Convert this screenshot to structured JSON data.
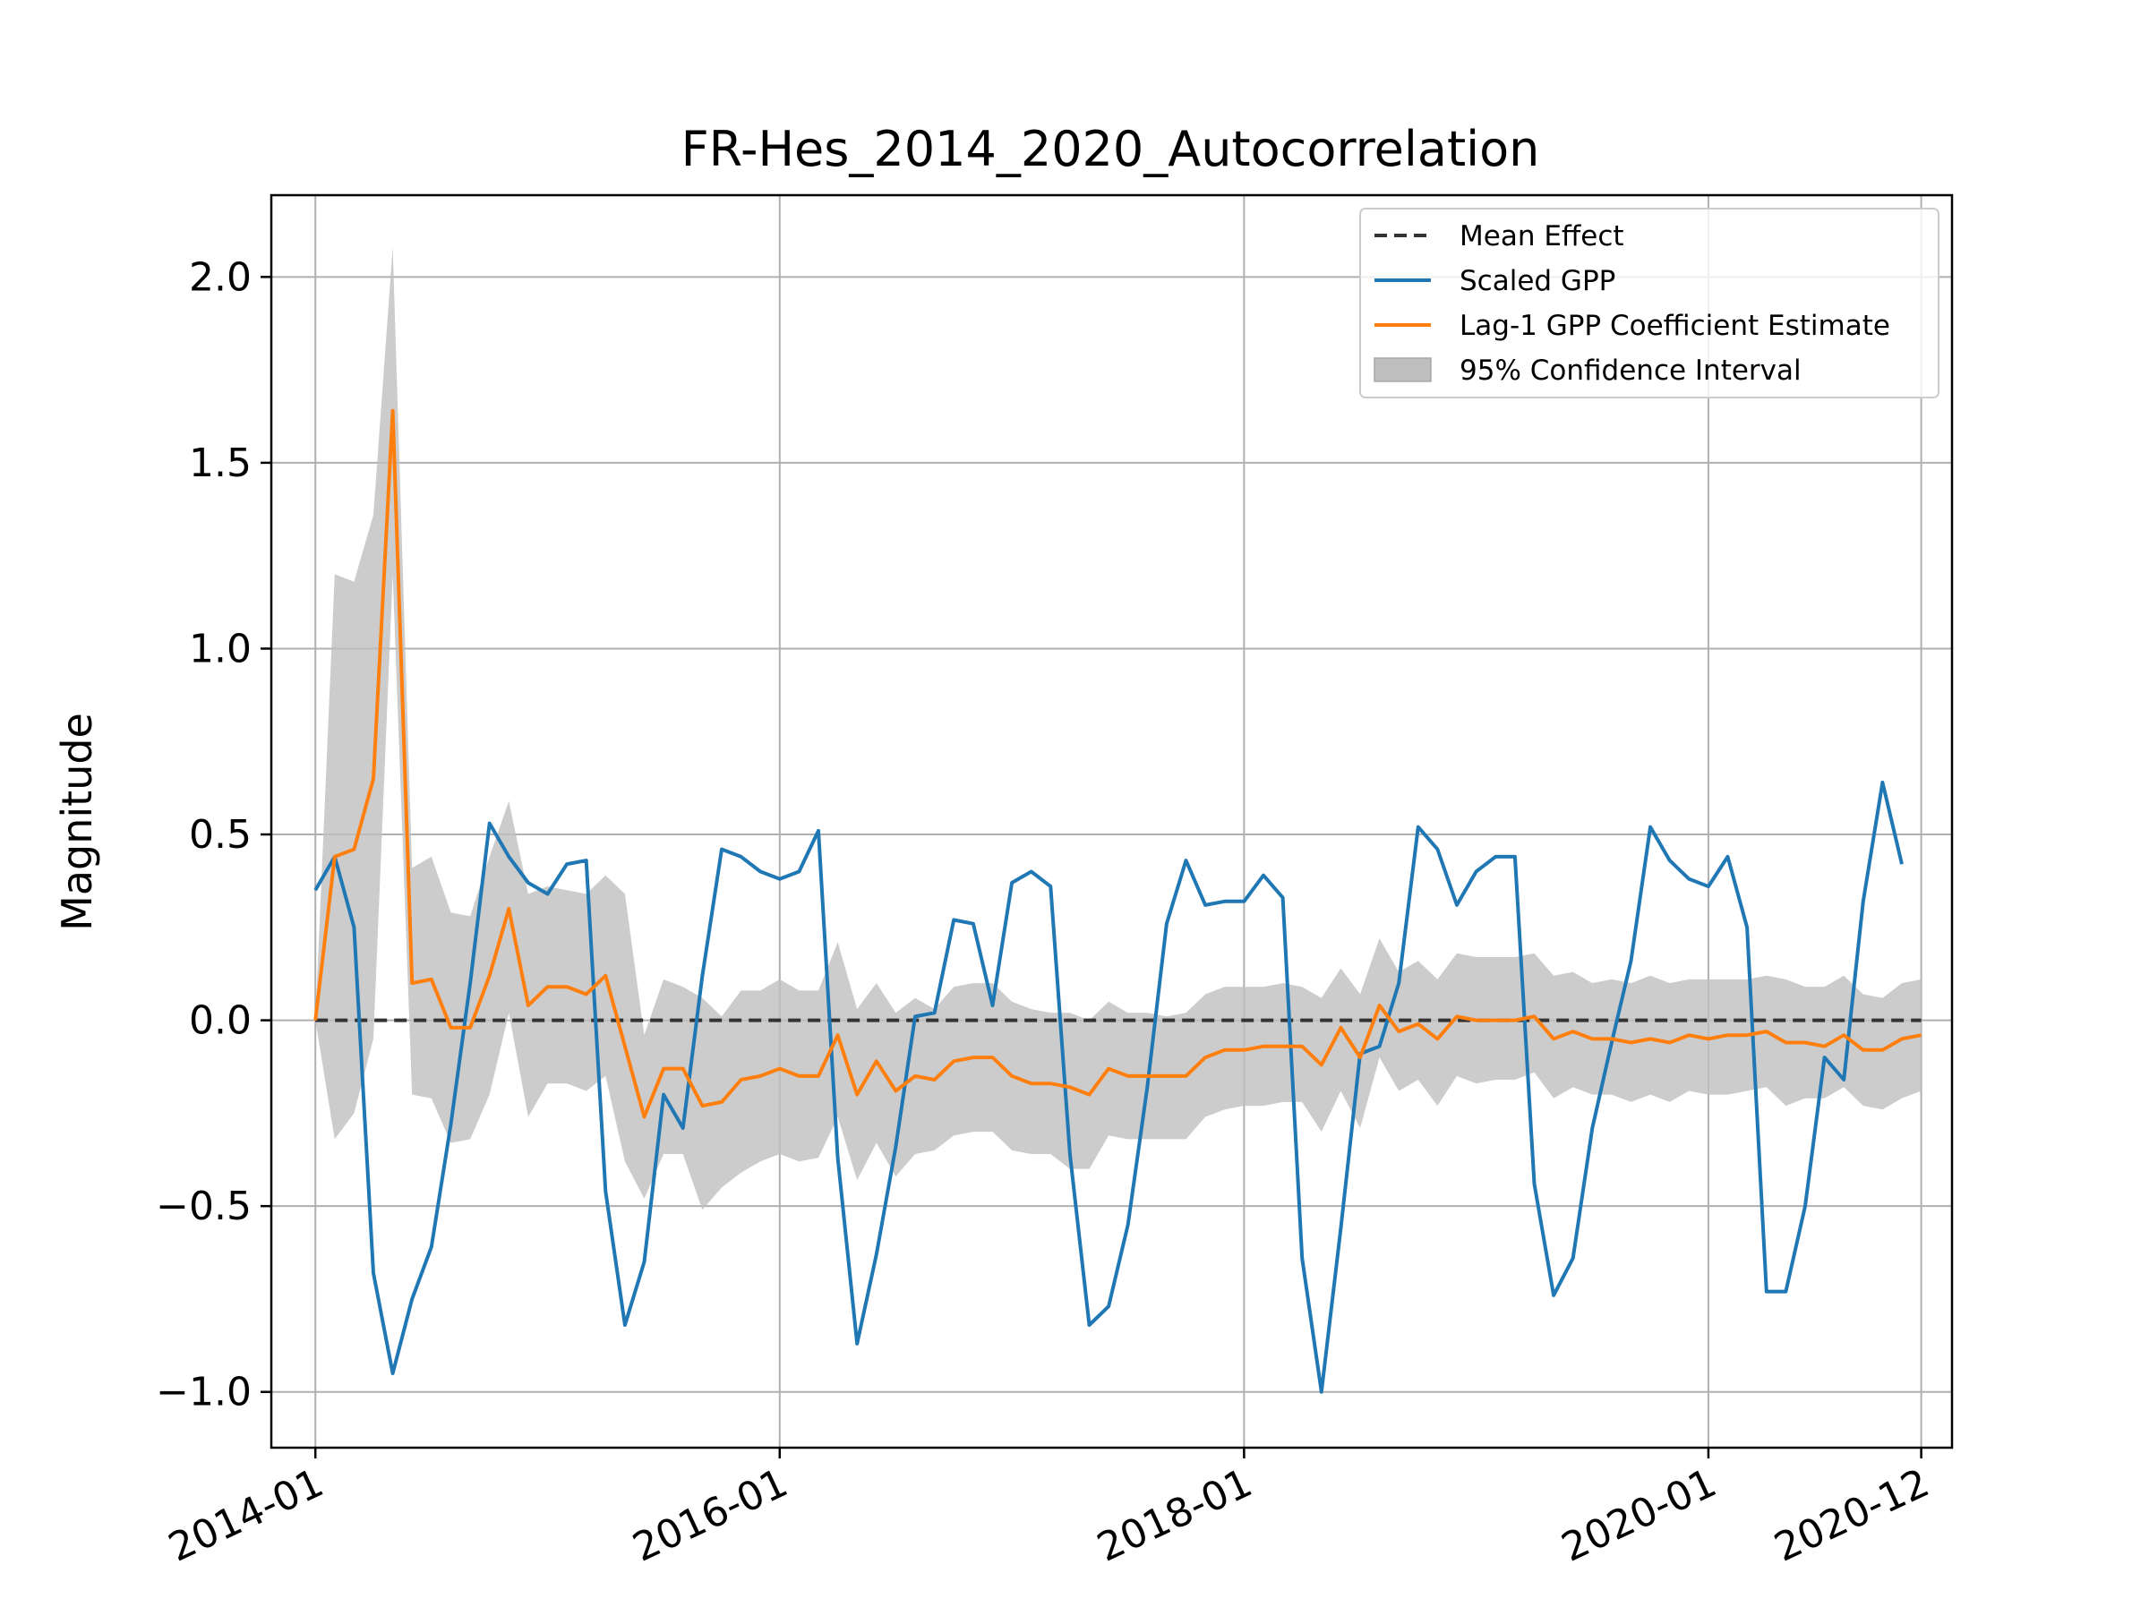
{
  "chart_data": {
    "type": "line",
    "title": "FR-Hes_2014_2020_Autocorrelation",
    "xlabel": "",
    "ylabel": "Magnitude",
    "ylim": [
      -1.15,
      2.22
    ],
    "xlim": [
      "2013-10-23",
      "2021-01-19"
    ],
    "grid": true,
    "legend_position": "upper right",
    "x_ticks": [
      "2014-01",
      "2016-01",
      "2018-01",
      "2020-01",
      "2020-12"
    ],
    "y_ticks": [
      -1.0,
      -0.5,
      0.0,
      0.5,
      1.0,
      1.5,
      2.0
    ],
    "y_tick_labels": [
      "−1.0",
      "−0.5",
      "0.0",
      "0.5",
      "1.0",
      "1.5",
      "2.0"
    ],
    "colors": {
      "mean": "#333333",
      "gpp": "#1f77b4",
      "coef": "#ff7f0e",
      "ci": "#bfbfbf"
    },
    "series": [
      {
        "name": "Mean Effect",
        "style": "dashed",
        "x": [
          "2014-01",
          "2020-12"
        ],
        "values": [
          0.0,
          0.0
        ]
      },
      {
        "name": "Scaled GPP",
        "x": [
          "2014-01",
          "2014-02",
          "2014-03",
          "2014-04",
          "2014-05",
          "2014-06",
          "2014-07",
          "2014-08",
          "2014-09",
          "2014-10",
          "2014-11",
          "2014-12",
          "2015-01",
          "2015-02",
          "2015-03",
          "2015-04",
          "2015-05",
          "2015-06",
          "2015-07",
          "2015-08",
          "2015-09",
          "2015-10",
          "2015-11",
          "2015-12",
          "2016-01",
          "2016-02",
          "2016-03",
          "2016-04",
          "2016-05",
          "2016-06",
          "2016-07",
          "2016-08",
          "2016-09",
          "2016-10",
          "2016-11",
          "2016-12",
          "2017-01",
          "2017-02",
          "2017-03",
          "2017-04",
          "2017-05",
          "2017-06",
          "2017-07",
          "2017-08",
          "2017-09",
          "2017-10",
          "2017-11",
          "2017-12",
          "2018-01",
          "2018-02",
          "2018-03",
          "2018-04",
          "2018-05",
          "2018-06",
          "2018-07",
          "2018-08",
          "2018-09",
          "2018-10",
          "2018-11",
          "2018-12",
          "2019-01",
          "2019-02",
          "2019-03",
          "2019-04",
          "2019-05",
          "2019-06",
          "2019-07",
          "2019-08",
          "2019-09",
          "2019-10",
          "2019-11",
          "2019-12",
          "2020-01",
          "2020-02",
          "2020-03",
          "2020-04",
          "2020-05",
          "2020-06",
          "2020-07",
          "2020-08",
          "2020-09",
          "2020-10",
          "2020-11",
          "2020-12"
        ],
        "values": [
          0.35,
          0.44,
          0.25,
          -0.68,
          -0.95,
          -0.75,
          -0.61,
          -0.28,
          0.1,
          0.53,
          0.44,
          0.37,
          0.34,
          0.42,
          0.43,
          -0.46,
          -0.82,
          -0.65,
          -0.2,
          -0.29,
          0.12,
          0.46,
          0.44,
          0.4,
          0.38,
          0.4,
          0.51,
          -0.37,
          -0.87,
          -0.63,
          -0.34,
          0.01,
          0.02,
          0.27,
          0.26,
          0.04,
          0.37,
          0.4,
          0.36,
          -0.36,
          -0.82,
          -0.77,
          -0.55,
          -0.18,
          0.26,
          0.43,
          0.31,
          0.32,
          0.32,
          0.39,
          0.33,
          -0.64,
          -1.0,
          -0.56,
          -0.09,
          -0.07,
          0.1,
          0.52,
          0.46,
          0.31,
          0.4,
          0.44,
          0.44,
          -0.44,
          -0.74,
          -0.64,
          -0.29,
          -0.06,
          0.16,
          0.52,
          0.43,
          0.38,
          0.36,
          0.44,
          0.25,
          -0.73,
          -0.73,
          -0.5,
          -0.1,
          -0.16,
          0.32,
          0.64,
          0.42,
          null
        ]
      },
      {
        "name": "Lag-1 GPP Coefficient Estimate",
        "x": [
          "2014-01",
          "2014-02",
          "2014-03",
          "2014-04",
          "2014-05",
          "2014-06",
          "2014-07",
          "2014-08",
          "2014-09",
          "2014-10",
          "2014-11",
          "2014-12",
          "2015-01",
          "2015-02",
          "2015-03",
          "2015-04",
          "2015-05",
          "2015-06",
          "2015-07",
          "2015-08",
          "2015-09",
          "2015-10",
          "2015-11",
          "2015-12",
          "2016-01",
          "2016-02",
          "2016-03",
          "2016-04",
          "2016-05",
          "2016-06",
          "2016-07",
          "2016-08",
          "2016-09",
          "2016-10",
          "2016-11",
          "2016-12",
          "2017-01",
          "2017-02",
          "2017-03",
          "2017-04",
          "2017-05",
          "2017-06",
          "2017-07",
          "2017-08",
          "2017-09",
          "2017-10",
          "2017-11",
          "2017-12",
          "2018-01",
          "2018-02",
          "2018-03",
          "2018-04",
          "2018-05",
          "2018-06",
          "2018-07",
          "2018-08",
          "2018-09",
          "2018-10",
          "2018-11",
          "2018-12",
          "2019-01",
          "2019-02",
          "2019-03",
          "2019-04",
          "2019-05",
          "2019-06",
          "2019-07",
          "2019-08",
          "2019-09",
          "2019-10",
          "2019-11",
          "2019-12",
          "2020-01",
          "2020-02",
          "2020-03",
          "2020-04",
          "2020-05",
          "2020-06",
          "2020-07",
          "2020-08",
          "2020-09",
          "2020-10",
          "2020-11",
          "2020-12"
        ],
        "values": [
          0.0,
          0.44,
          0.46,
          0.65,
          1.64,
          0.1,
          0.11,
          -0.02,
          -0.02,
          0.12,
          0.3,
          0.04,
          0.09,
          0.09,
          0.07,
          0.12,
          -0.07,
          -0.26,
          -0.13,
          -0.13,
          -0.23,
          -0.22,
          -0.16,
          -0.15,
          -0.13,
          -0.15,
          -0.15,
          -0.04,
          -0.2,
          -0.11,
          -0.19,
          -0.15,
          -0.16,
          -0.11,
          -0.1,
          -0.1,
          -0.15,
          -0.17,
          -0.17,
          -0.18,
          -0.2,
          -0.13,
          -0.15,
          -0.15,
          -0.15,
          -0.15,
          -0.1,
          -0.08,
          -0.08,
          -0.07,
          -0.07,
          -0.07,
          -0.12,
          -0.02,
          -0.1,
          0.04,
          -0.03,
          -0.01,
          -0.05,
          0.01,
          0.0,
          0.0,
          0.0,
          0.01,
          -0.05,
          -0.03,
          -0.05,
          -0.05,
          -0.06,
          -0.05,
          -0.06,
          -0.04,
          -0.05,
          -0.04,
          -0.04,
          -0.03,
          -0.06,
          -0.06,
          -0.07,
          -0.04,
          -0.08,
          -0.08,
          -0.05,
          -0.04
        ]
      },
      {
        "name": "95% Confidence Interval",
        "type": "band",
        "x": [
          "2014-01",
          "2014-02",
          "2014-03",
          "2014-04",
          "2014-05",
          "2014-06",
          "2014-07",
          "2014-08",
          "2014-09",
          "2014-10",
          "2014-11",
          "2014-12",
          "2015-01",
          "2015-02",
          "2015-03",
          "2015-04",
          "2015-05",
          "2015-06",
          "2015-07",
          "2015-08",
          "2015-09",
          "2015-10",
          "2015-11",
          "2015-12",
          "2016-01",
          "2016-02",
          "2016-03",
          "2016-04",
          "2016-05",
          "2016-06",
          "2016-07",
          "2016-08",
          "2016-09",
          "2016-10",
          "2016-11",
          "2016-12",
          "2017-01",
          "2017-02",
          "2017-03",
          "2017-04",
          "2017-05",
          "2017-06",
          "2017-07",
          "2017-08",
          "2017-09",
          "2017-10",
          "2017-11",
          "2017-12",
          "2018-01",
          "2018-02",
          "2018-03",
          "2018-04",
          "2018-05",
          "2018-06",
          "2018-07",
          "2018-08",
          "2018-09",
          "2018-10",
          "2018-11",
          "2018-12",
          "2019-01",
          "2019-02",
          "2019-03",
          "2019-04",
          "2019-05",
          "2019-06",
          "2019-07",
          "2019-08",
          "2019-09",
          "2019-10",
          "2019-11",
          "2019-12",
          "2020-01",
          "2020-02",
          "2020-03",
          "2020-04",
          "2020-05",
          "2020-06",
          "2020-07",
          "2020-08",
          "2020-09",
          "2020-10",
          "2020-11",
          "2020-12"
        ],
        "lower": [
          0.0,
          -0.32,
          -0.25,
          -0.05,
          1.2,
          -0.2,
          -0.21,
          -0.33,
          -0.32,
          -0.2,
          0.02,
          -0.26,
          -0.17,
          -0.17,
          -0.19,
          -0.15,
          -0.38,
          -0.48,
          -0.36,
          -0.36,
          -0.51,
          -0.45,
          -0.41,
          -0.38,
          -0.36,
          -0.38,
          -0.37,
          -0.26,
          -0.43,
          -0.33,
          -0.42,
          -0.36,
          -0.35,
          -0.31,
          -0.3,
          -0.3,
          -0.35,
          -0.36,
          -0.36,
          -0.4,
          -0.4,
          -0.31,
          -0.32,
          -0.32,
          -0.32,
          -0.32,
          -0.26,
          -0.24,
          -0.23,
          -0.23,
          -0.22,
          -0.22,
          -0.3,
          -0.19,
          -0.29,
          -0.1,
          -0.19,
          -0.16,
          -0.23,
          -0.15,
          -0.17,
          -0.16,
          -0.16,
          -0.14,
          -0.21,
          -0.18,
          -0.2,
          -0.2,
          -0.22,
          -0.2,
          -0.22,
          -0.19,
          -0.2,
          -0.2,
          -0.19,
          -0.18,
          -0.23,
          -0.21,
          -0.21,
          -0.18,
          -0.23,
          -0.24,
          -0.21,
          -0.19
        ],
        "upper": [
          0.0,
          1.2,
          1.18,
          1.36,
          2.08,
          0.41,
          0.44,
          0.29,
          0.28,
          0.44,
          0.59,
          0.34,
          0.36,
          0.35,
          0.34,
          0.39,
          0.34,
          -0.04,
          0.11,
          0.09,
          0.06,
          0.01,
          0.08,
          0.08,
          0.11,
          0.08,
          0.08,
          0.21,
          0.03,
          0.1,
          0.02,
          0.06,
          0.03,
          0.09,
          0.1,
          0.1,
          0.05,
          0.03,
          0.02,
          0.02,
          0.0,
          0.05,
          0.02,
          0.02,
          0.01,
          0.02,
          0.07,
          0.09,
          0.09,
          0.09,
          0.1,
          0.09,
          0.06,
          0.14,
          0.07,
          0.22,
          0.13,
          0.16,
          0.11,
          0.18,
          0.17,
          0.17,
          0.17,
          0.18,
          0.12,
          0.13,
          0.1,
          0.11,
          0.1,
          0.12,
          0.1,
          0.11,
          0.11,
          0.11,
          0.11,
          0.12,
          0.11,
          0.09,
          0.09,
          0.12,
          0.07,
          0.06,
          0.1,
          0.11
        ]
      }
    ]
  }
}
